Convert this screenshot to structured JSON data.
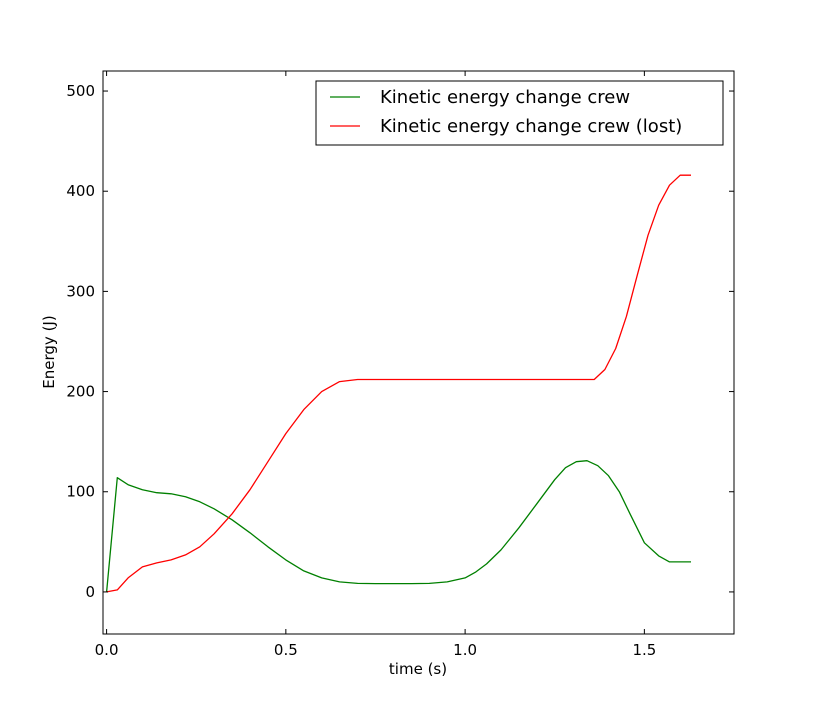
{
  "chart_data": {
    "type": "line",
    "xlabel": "time (s)",
    "ylabel": "Energy (J)",
    "xlim": [
      -0.01,
      1.75
    ],
    "ylim": [
      -42,
      520
    ],
    "x_ticks": [
      0.0,
      0.5,
      1.0,
      1.5
    ],
    "x_tick_labels": [
      "0.0",
      "0.5",
      "1.0",
      "1.5"
    ],
    "y_ticks": [
      0,
      100,
      200,
      300,
      400,
      500
    ],
    "y_tick_labels": [
      "0",
      "100",
      "200",
      "300",
      "400",
      "500"
    ],
    "grid": false,
    "legend_position": "top-right",
    "series": [
      {
        "name": "Kinetic energy change crew",
        "color": "#008000",
        "x": [
          0.0,
          0.03,
          0.06,
          0.1,
          0.14,
          0.18,
          0.22,
          0.26,
          0.3,
          0.35,
          0.4,
          0.45,
          0.5,
          0.55,
          0.6,
          0.65,
          0.7,
          0.75,
          0.8,
          0.85,
          0.9,
          0.95,
          1.0,
          1.03,
          1.06,
          1.1,
          1.15,
          1.2,
          1.25,
          1.28,
          1.31,
          1.34,
          1.37,
          1.4,
          1.43,
          1.46,
          1.5,
          1.54,
          1.57,
          1.6,
          1.63
        ],
        "y": [
          0,
          114,
          107,
          102,
          99,
          98,
          95,
          90,
          83,
          72,
          59,
          45,
          32,
          21,
          14,
          10,
          8.5,
          8.3,
          8.3,
          8.3,
          8.5,
          10,
          14,
          20,
          28,
          42,
          64,
          88,
          112,
          124,
          130,
          131,
          126,
          116,
          100,
          78,
          49,
          36,
          30,
          30,
          30
        ]
      },
      {
        "name": "Kinetic energy change crew (lost)",
        "color": "#ff0000",
        "x": [
          0.0,
          0.03,
          0.06,
          0.1,
          0.14,
          0.18,
          0.22,
          0.26,
          0.3,
          0.35,
          0.4,
          0.45,
          0.5,
          0.55,
          0.6,
          0.65,
          0.7,
          0.75,
          0.8,
          0.9,
          1.0,
          1.1,
          1.2,
          1.3,
          1.36,
          1.39,
          1.42,
          1.45,
          1.48,
          1.51,
          1.54,
          1.57,
          1.6,
          1.63
        ],
        "y": [
          0,
          2,
          14,
          25,
          29,
          32,
          37,
          45,
          58,
          78,
          102,
          130,
          158,
          182,
          200,
          210,
          212,
          212,
          212,
          212,
          212,
          212,
          212,
          212,
          212,
          222,
          243,
          275,
          316,
          356,
          386,
          406,
          416,
          416
        ]
      }
    ]
  }
}
